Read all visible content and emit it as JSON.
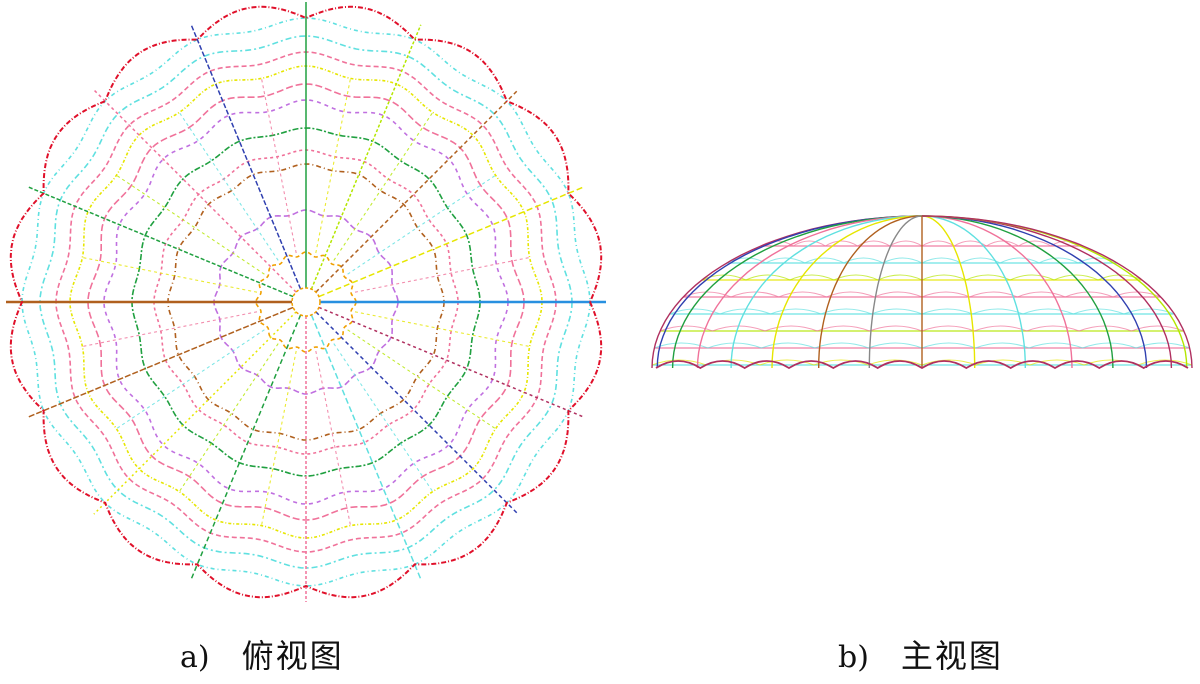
{
  "captions": {
    "a_letter": "a)",
    "a_title": "俯视图",
    "b_letter": "b)",
    "b_title": "主视图"
  },
  "palette": {
    "outer_red": "#e0102a",
    "pink": "#f0729a",
    "cyan": "#5fe0e0",
    "yellow": "#e6e600",
    "lime": "#b4e600",
    "violet": "#c070e0",
    "brown": "#b0601e",
    "orange": "#f0a000",
    "green": "#20a040",
    "blue": "#2890e0",
    "navy": "#3040b0",
    "crimson": "#b03060"
  },
  "top_view": {
    "outer_scallops": 16,
    "ring_count": 11,
    "radial_count": 16
  },
  "front_view": {
    "ribs": 16,
    "horizontal_rings": 8
  }
}
